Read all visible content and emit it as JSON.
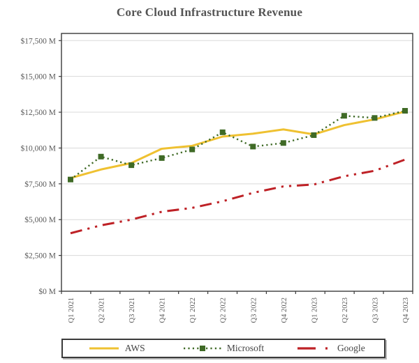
{
  "title": "Core Cloud Infrastructure Revenue",
  "chart_data": {
    "type": "line",
    "title": "Core Cloud Infrastructure Revenue",
    "categories": [
      "Q1 2021",
      "Q2 2021",
      "Q3 2021",
      "Q4 2021",
      "Q1 2022",
      "Q2 2022",
      "Q3 2022",
      "Q4 2022",
      "Q1 2023",
      "Q2 2023",
      "Q3 2023",
      "Q4 2023"
    ],
    "series": [
      {
        "name": "AWS",
        "color": "#EFC131",
        "style": "solid",
        "values": [
          7900,
          8500,
          8950,
          9950,
          10150,
          10800,
          11000,
          11300,
          10950,
          11600,
          12000,
          12550
        ]
      },
      {
        "name": "Microsoft",
        "color": "#3F6A26",
        "style": "dotted-square-markers",
        "values": [
          7800,
          9400,
          8800,
          9300,
          9900,
          11100,
          10100,
          10350,
          10900,
          12250,
          12100,
          12600
        ]
      },
      {
        "name": "Google",
        "color": "#BE2126",
        "style": "dash-dot",
        "values": [
          4050,
          4600,
          5000,
          5550,
          5820,
          6280,
          6870,
          7320,
          7450,
          8030,
          8410,
          9190
        ]
      }
    ],
    "yticks": [
      "$0 M",
      "$2,500 M",
      "$5,000 M",
      "$7,500 M",
      "$10,000 M",
      "$12,500 M",
      "$15,000 M",
      "$17,500 M"
    ],
    "ytick_values": [
      0,
      2500,
      5000,
      7500,
      10000,
      12500,
      15000,
      17500
    ],
    "ylim": [
      0,
      18000
    ],
    "xlabel": "",
    "ylabel": "",
    "grid": true,
    "legend_position": "bottom",
    "colors": {
      "axis_text": "#595959",
      "gridline": "#d9d9d9",
      "plot_border": "#3a3a3a",
      "title_text": "#545454"
    }
  }
}
